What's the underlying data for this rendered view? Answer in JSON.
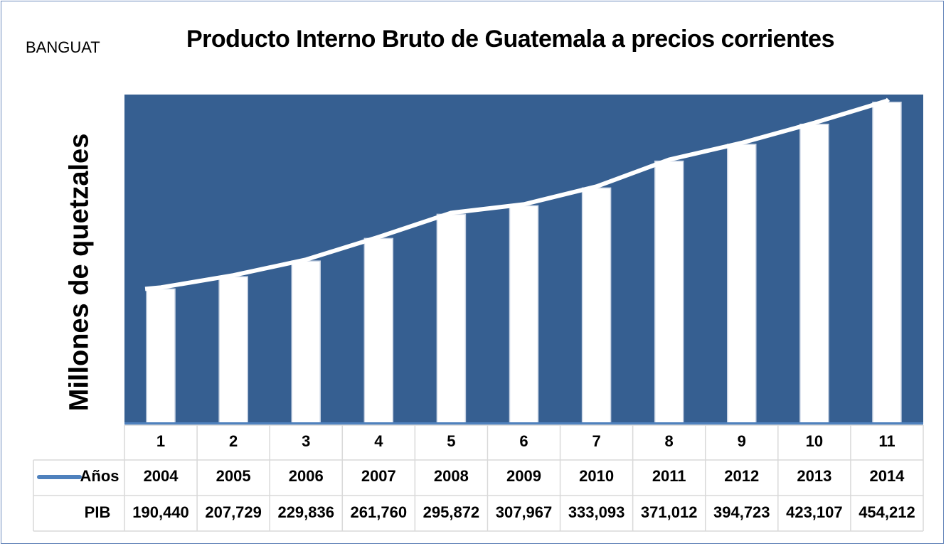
{
  "source_label": "BANGUAT",
  "chart_data": {
    "type": "bar",
    "title": "Producto Interno Bruto de Guatemala a precios corrientes",
    "ylabel": "Millones de quetzales",
    "xlabel": "",
    "categories": [
      "1",
      "2",
      "3",
      "4",
      "5",
      "6",
      "7",
      "8",
      "9",
      "10",
      "11"
    ],
    "series": [
      {
        "name": "Años",
        "values": [
          "2004",
          "2005",
          "2006",
          "2007",
          "2008",
          "2009",
          "2010",
          "2011",
          "2012",
          "2013",
          "2014"
        ]
      },
      {
        "name": "PIB",
        "values": [
          190440,
          207729,
          229836,
          261760,
          295872,
          307967,
          333093,
          371012,
          394723,
          423107,
          454212
        ]
      }
    ],
    "pib_labels": [
      "190,440",
      "207,729",
      "229,836",
      "261,760",
      "295,872",
      "307,967",
      "333,093",
      "371,012",
      "394,723",
      "423,107",
      "454,212"
    ],
    "ylim": [
      0,
      465000
    ],
    "grid": false,
    "legend": "data-table",
    "colors": {
      "plot_background": "#365f91",
      "bars": "#ffffff",
      "line": "#ffffff",
      "legend_line": "#4f81bd",
      "table_border": "#d9d9d9"
    }
  }
}
